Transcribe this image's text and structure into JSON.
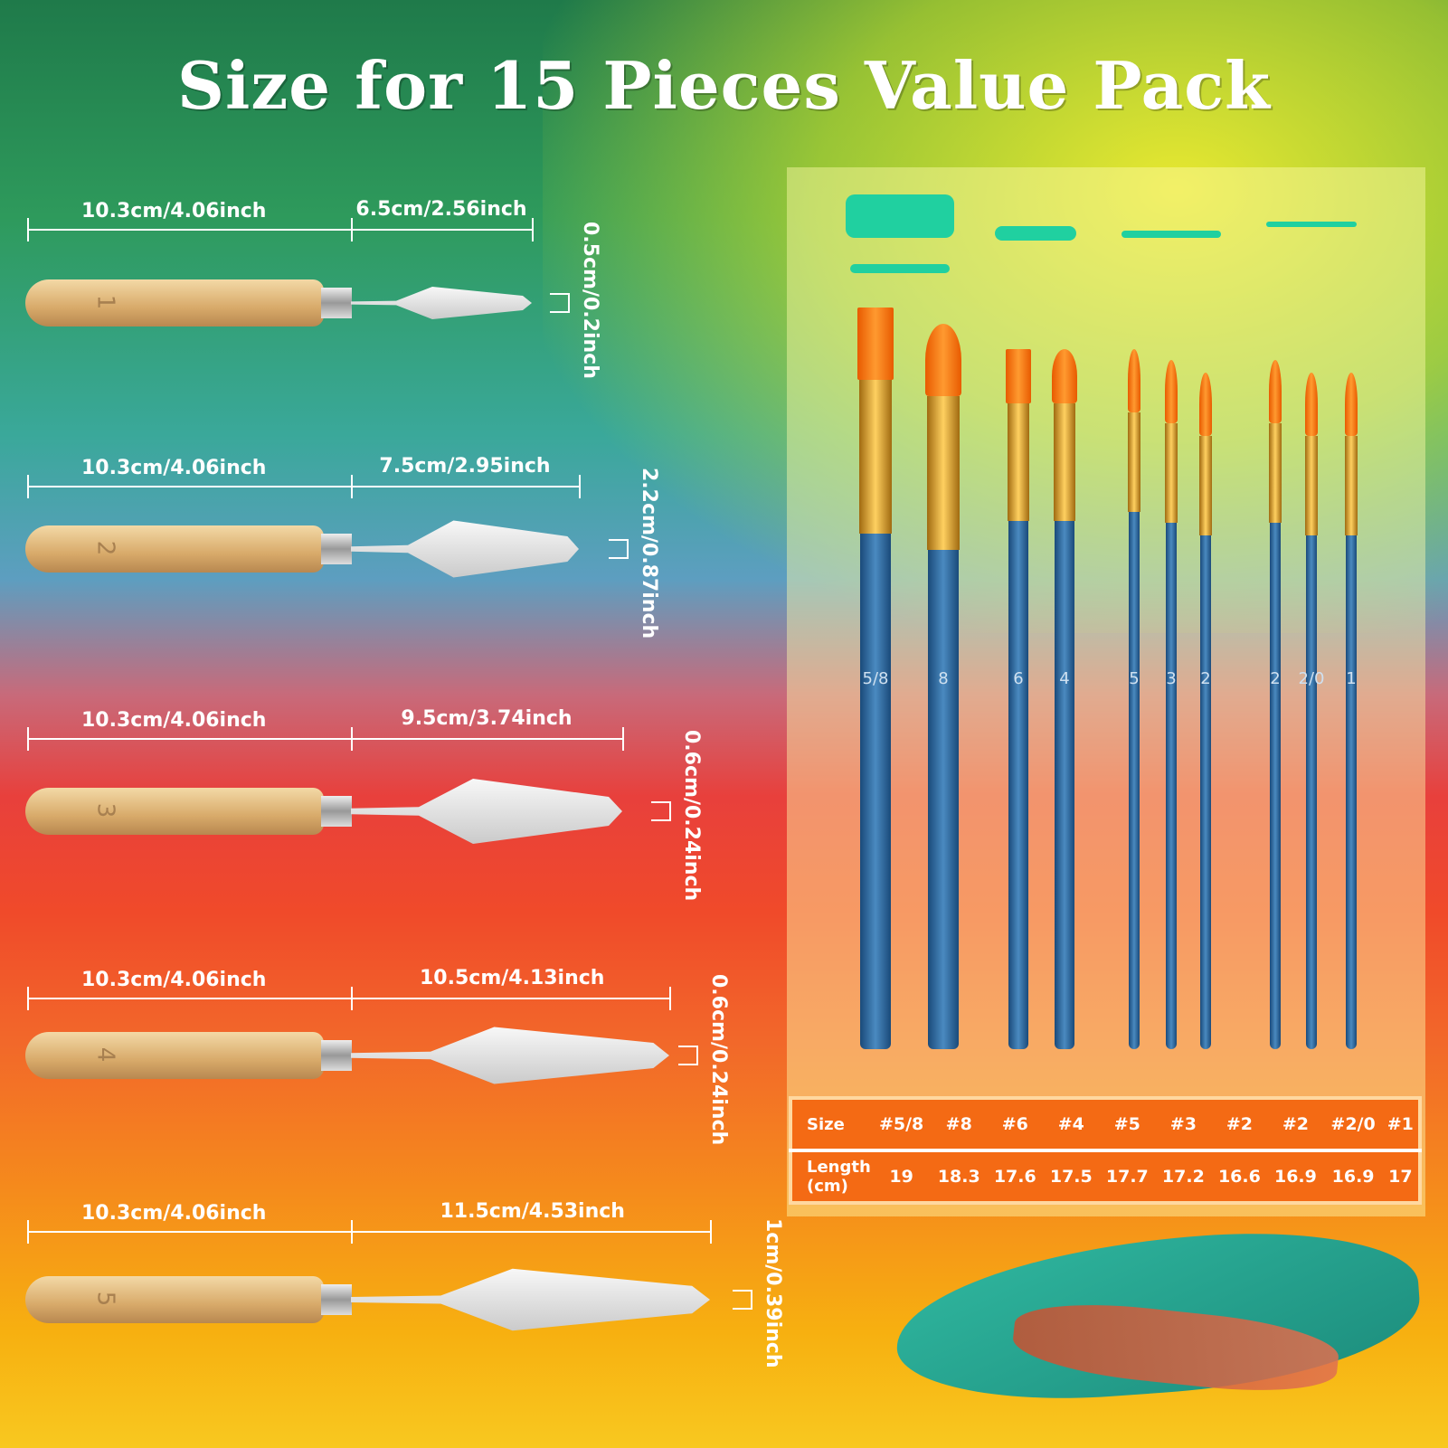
{
  "title": "Size for 15 Pieces Value Pack",
  "knives": [
    {
      "number": "1",
      "handle": "10.3cm/4.06inch",
      "blade": "6.5cm/2.56inch",
      "width": "0.5cm/0.2inch"
    },
    {
      "number": "2",
      "handle": "10.3cm/4.06inch",
      "blade": "7.5cm/2.95inch",
      "width": "2.2cm/0.87inch"
    },
    {
      "number": "3",
      "handle": "10.3cm/4.06inch",
      "blade": "9.5cm/3.74inch",
      "width": "0.6cm/0.24inch"
    },
    {
      "number": "4",
      "handle": "10.3cm/4.06inch",
      "blade": "10.5cm/4.13inch",
      "width": "0.6cm/0.24inch"
    },
    {
      "number": "5",
      "handle": "10.3cm/4.06inch",
      "blade": "11.5cm/4.53inch",
      "width": "1cm/0.39inch"
    }
  ],
  "brushes": [
    {
      "label": "5/8",
      "size": "#5/8",
      "length": "19",
      "shape": "flat"
    },
    {
      "label": "8",
      "size": "#8",
      "length": "18.3",
      "shape": "filbert"
    },
    {
      "label": "6",
      "size": "#6",
      "length": "17.6",
      "shape": "flat"
    },
    {
      "label": "4",
      "size": "#4",
      "length": "17.5",
      "shape": "filbert"
    },
    {
      "label": "5",
      "size": "#5",
      "length": "17.7",
      "shape": "round"
    },
    {
      "label": "3",
      "size": "#3",
      "length": "17.2",
      "shape": "round"
    },
    {
      "label": "2",
      "size": "#2",
      "length": "16.6",
      "shape": "angle"
    },
    {
      "label": "2",
      "size": "#2",
      "length": "16.9",
      "shape": "round"
    },
    {
      "label": "2/0",
      "size": "#2/0",
      "length": "16.9",
      "shape": "round"
    },
    {
      "label": "1",
      "size": "#1",
      "length": "17",
      "shape": "round"
    }
  ],
  "table": {
    "size_header": "Size",
    "length_header": "Length",
    "length_unit": "(cm)"
  },
  "colors": {
    "table_bg": "#f46a14",
    "brush_handle": "#2a6aa0",
    "bristle": "#ff8a20"
  }
}
